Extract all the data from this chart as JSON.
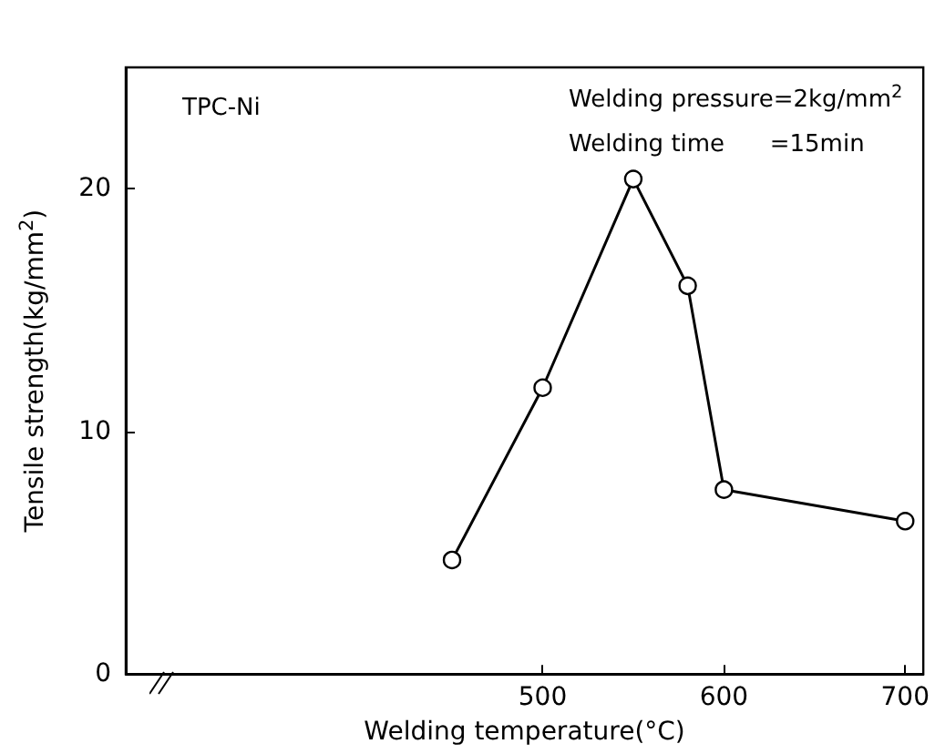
{
  "chart_data": {
    "type": "line",
    "xlabel": "Welding temperature(°C)",
    "ylabel": "Tensile strength(kg/mm$^{2}$)",
    "x": [
      450,
      500,
      550,
      580,
      600,
      700
    ],
    "series": [
      {
        "color": "#000000",
        "values": [
          4.7,
          11.8,
          20.4,
          16.0,
          7.6,
          6.3
        ]
      }
    ],
    "xlim": [
      270,
      710
    ],
    "xticks": [
      500,
      600,
      700
    ],
    "ylim": [
      0,
      25
    ],
    "yticks": [
      0,
      10,
      20
    ],
    "marker": "circle",
    "line_style": "solid",
    "grid": false,
    "annotations": [
      "TPC-Ni",
      "Welding pressure=2kg/mm$^{2}$",
      "Welding time      =15min"
    ]
  }
}
